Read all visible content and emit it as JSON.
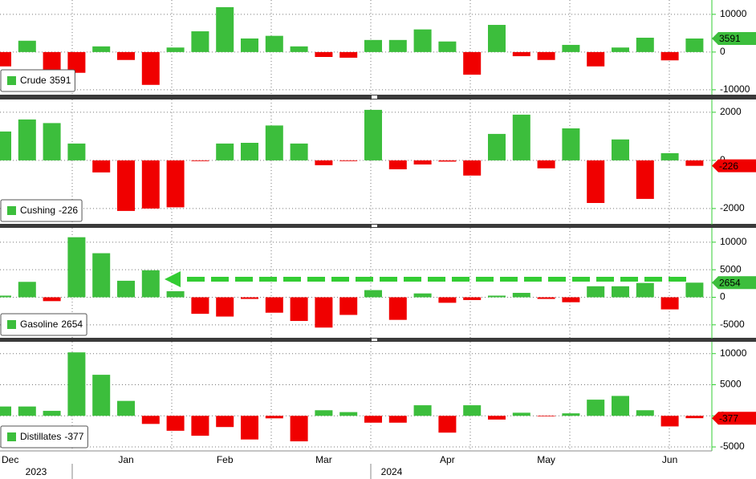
{
  "chart_data": [
    {
      "type": "bar",
      "series": [
        {
          "name": "Crude",
          "values": [
            -3800,
            3000,
            -4900,
            -5500,
            1500,
            -2100,
            -8700,
            1200,
            5500,
            11900,
            3600,
            4300,
            1500,
            -1300,
            -1500,
            3200,
            3200,
            6000,
            2800,
            -6000,
            7200,
            -1100,
            -2100,
            1900,
            -3800,
            1200,
            3800,
            -2200,
            3591
          ]
        }
      ],
      "ylim": [
        -11300,
        13800
      ],
      "yticks": [
        -10000,
        0,
        10000
      ],
      "positive_color": "#3cbe3c",
      "negative_color": "#f00000"
    },
    {
      "type": "bar",
      "series": [
        {
          "name": "Cushing",
          "values": [
            1200,
            1700,
            1550,
            700,
            -500,
            -2100,
            -2000,
            -1950,
            -30,
            700,
            730,
            1450,
            700,
            -200,
            -30,
            2100,
            -370,
            -170,
            -50,
            -630,
            1100,
            1900,
            -330,
            1330,
            -1770,
            870,
            -1600,
            300,
            -226
          ]
        }
      ],
      "ylim": [
        -2670,
        2530
      ],
      "yticks": [
        -2000,
        0,
        2000
      ],
      "positive_color": "#3cbe3c",
      "negative_color": "#f00000"
    },
    {
      "type": "bar",
      "series": [
        {
          "name": "Gasoline",
          "values": [
            300,
            2800,
            -700,
            10900,
            8000,
            3000,
            4900,
            1100,
            -3000,
            -3500,
            -300,
            -2800,
            -4300,
            -5500,
            -3200,
            1300,
            -4100,
            700,
            -1000,
            -500,
            300,
            800,
            -300,
            -900,
            2000,
            2000,
            2600,
            -2200,
            2654
          ]
        }
      ],
      "ylim": [
        -7500,
        12600
      ],
      "yticks": [
        -5000,
        0,
        5000,
        10000
      ],
      "positive_color": "#3cbe3c",
      "negative_color": "#f00000"
    },
    {
      "type": "bar",
      "series": [
        {
          "name": "Distillates",
          "values": [
            1500,
            1500,
            800,
            10200,
            6600,
            2400,
            -1300,
            -2400,
            -3200,
            -1800,
            -3800,
            -400,
            -4100,
            900,
            600,
            -1100,
            -1100,
            1700,
            -2700,
            1700,
            -600,
            500,
            -100,
            400,
            2600,
            3200,
            900,
            -1700,
            -377
          ]
        }
      ],
      "ylim": [
        -5640,
        11900
      ],
      "yticks": [
        -5000,
        0,
        5000,
        10000
      ],
      "positive_color": "#3cbe3c",
      "negative_color": "#f00000",
      "categories": [
        "Dec",
        null,
        null,
        null,
        null,
        "Jan",
        null,
        null,
        null,
        "Feb",
        null,
        null,
        null,
        "Mar",
        null,
        null,
        null,
        null,
        "Apr",
        null,
        null,
        null,
        "May",
        null,
        null,
        null,
        null,
        "Jun",
        null
      ],
      "years": [
        "2023",
        "2024"
      ]
    }
  ]
}
